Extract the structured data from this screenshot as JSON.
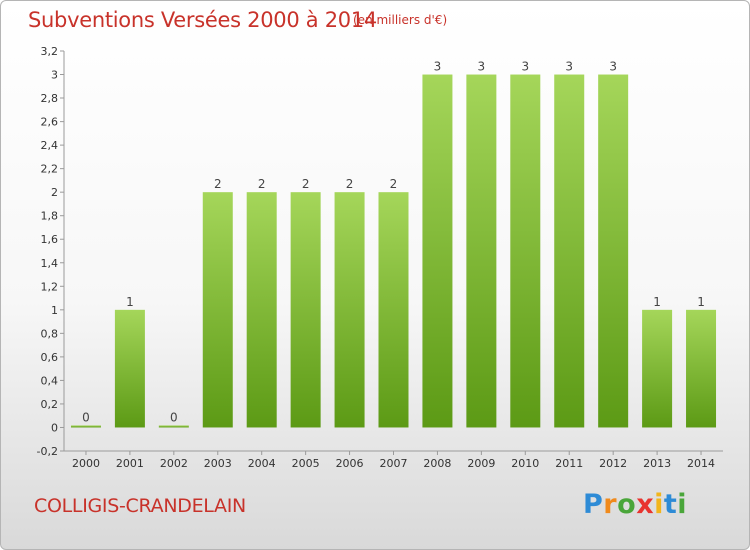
{
  "header": {
    "title": "Subventions Versées 2000 à 2014",
    "unit": "(en milliers d'€)"
  },
  "footer": {
    "commune": "COLLIGIS-CRANDELAIN",
    "logo_letters": [
      {
        "char": "P",
        "color": "#2e8bd6"
      },
      {
        "char": "r",
        "color": "#f08a1c"
      },
      {
        "char": "o",
        "color": "#4aa63a"
      },
      {
        "char": "x",
        "color": "#e8342f"
      },
      {
        "char": "i",
        "color": "#f2b51c"
      },
      {
        "char": "t",
        "color": "#2e8bd6"
      },
      {
        "char": "i",
        "color": "#4aa63a"
      }
    ]
  },
  "colors": {
    "bar_top": "#a5d65a",
    "bar_bottom": "#5c9a15",
    "title": "#c8322a"
  },
  "chart_data": {
    "type": "bar",
    "title": "Subventions Versées 2000 à 2014",
    "subtitle": "(en milliers d'€)",
    "categories": [
      "2000",
      "2001",
      "2002",
      "2003",
      "2004",
      "2005",
      "2006",
      "2007",
      "2008",
      "2009",
      "2010",
      "2011",
      "2012",
      "2013",
      "2014"
    ],
    "values": [
      0,
      1,
      0,
      2,
      2,
      2,
      2,
      2,
      3,
      3,
      3,
      3,
      3,
      1,
      1
    ],
    "data_labels": [
      "0",
      "1",
      "0",
      "2",
      "2",
      "2",
      "2",
      "2",
      "3",
      "3",
      "3",
      "3",
      "3",
      "1",
      "1"
    ],
    "ylim": [
      -0.2,
      3.2
    ],
    "yticks": [
      -0.2,
      0,
      0.2,
      0.4,
      0.6,
      0.8,
      1,
      1.2,
      1.4,
      1.6,
      1.8,
      2,
      2.2,
      2.4,
      2.6,
      2.8,
      3,
      3.2
    ],
    "ytick_labels": [
      "-0,2",
      "0",
      "0,2",
      "0,4",
      "0,6",
      "0,8",
      "1",
      "1,2",
      "1,4",
      "1,6",
      "1,8",
      "2",
      "2,2",
      "2,4",
      "2,6",
      "2,8",
      "3",
      "3,2"
    ],
    "grid": false,
    "legend": "none"
  }
}
